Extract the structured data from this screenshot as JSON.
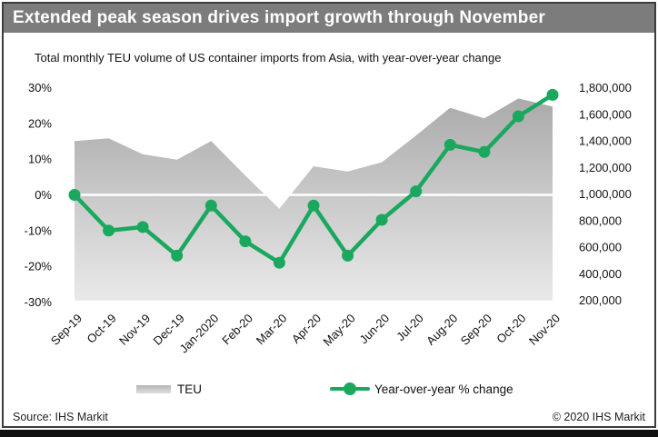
{
  "window": {
    "title": "Extended peak season drives import growth through November"
  },
  "chart": {
    "subtitle": "Total monthly TEU volume of US container imports from Asia, with year-over-year change",
    "legend": {
      "teu_label": "TEU",
      "yoy_label": "Year-over-year % change"
    }
  },
  "axes": {
    "left_ticks": [
      "30%",
      "20%",
      "10%",
      "0%",
      "-10%",
      "-20%",
      "-30%"
    ],
    "right_ticks": [
      "1,800,000",
      "1,600,000",
      "1,400,000",
      "1,200,000",
      "1,000,000",
      "800,000",
      "600,000",
      "400,000",
      "200,000"
    ]
  },
  "footer": {
    "source": "Source: IHS Markit",
    "copyright": "© 2020 IHS Markit"
  },
  "colors": {
    "accent_green": "#1aa85e",
    "titlebar_gray": "#7c7c7c",
    "area_gradient_top": "#a7a7a7",
    "area_gradient_bottom": "#e9e9e9",
    "zero_gridline": "#ffffff",
    "text": "#111111"
  },
  "chart_data": {
    "type": "combo",
    "title": "Extended peak season drives import growth through November",
    "subtitle": "Total monthly TEU volume of US container imports from Asia, with year-over-year change",
    "categories": [
      "Sep-19",
      "Oct-19",
      "Nov-19",
      "Dec-19",
      "Jan-2020",
      "Feb-20",
      "Mar-20",
      "Apr-20",
      "May-20",
      "Jun-20",
      "Jul-20",
      "Aug-20",
      "Sep-20",
      "Oct-20",
      "Nov-20"
    ],
    "series": [
      {
        "name": "TEU",
        "type": "area",
        "axis": "right",
        "color_fill": "gray vertical gradient",
        "values": [
          1400000,
          1420000,
          1300000,
          1260000,
          1400000,
          1140000,
          890000,
          1210000,
          1170000,
          1240000,
          1440000,
          1650000,
          1570000,
          1720000,
          1660000
        ]
      },
      {
        "name": "Year-over-year % change",
        "type": "line",
        "axis": "left",
        "color": "#1aa85e",
        "values": [
          0,
          -10,
          -9,
          -17,
          -3,
          -13,
          -19,
          -3,
          -17,
          -7,
          1,
          14,
          12,
          22,
          28
        ]
      }
    ],
    "left_axis": {
      "label": "year-over-year % change",
      "range": [
        -30,
        30
      ],
      "tick_step": 10,
      "unit": "%"
    },
    "right_axis": {
      "label": "TEU",
      "range": [
        200000,
        1800000
      ],
      "tick_step": 200000
    },
    "grid": "only 0% horizontal gridline, white",
    "legend_position": "bottom"
  }
}
